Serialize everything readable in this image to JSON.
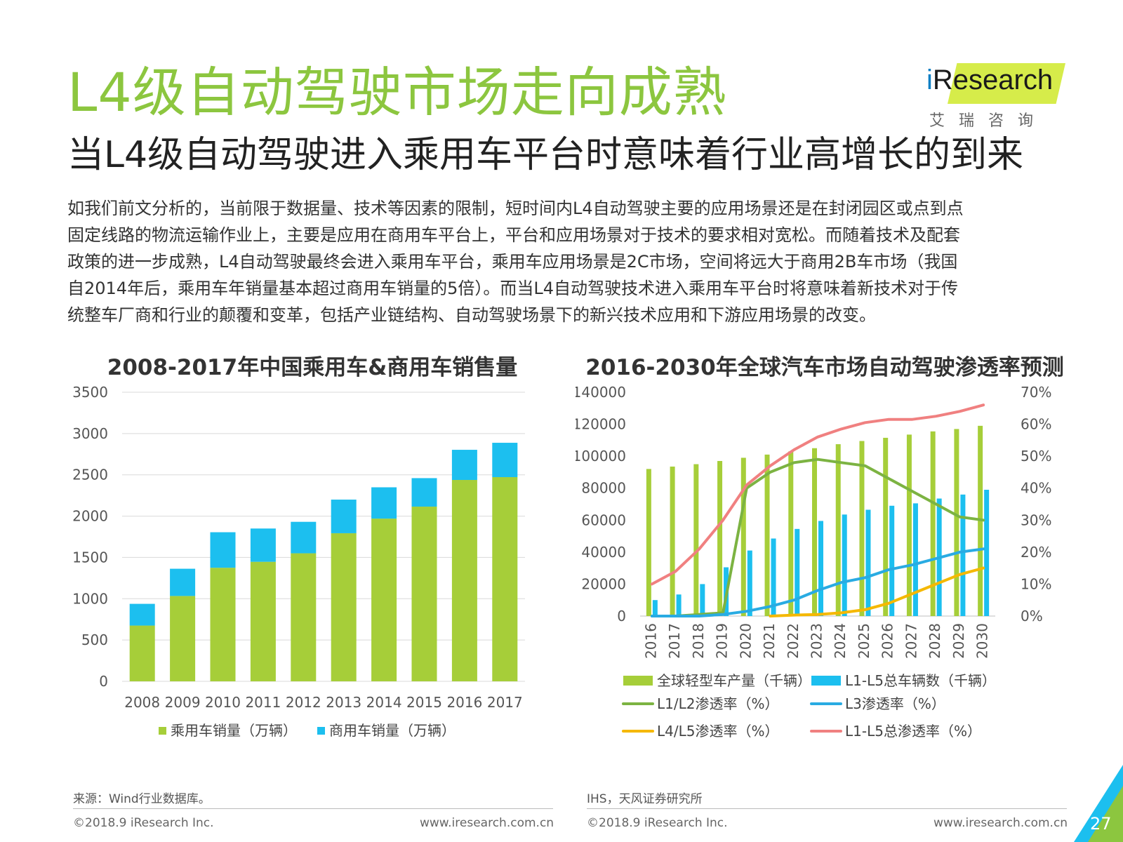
{
  "header": {
    "title": "L4级自动驾驶市场走向成熟",
    "subtitle": "当L4级自动驾驶进入乘用车平台时意味着行业高增长的到来"
  },
  "logo": {
    "brand_i": "i",
    "brand_rest": "Research",
    "chinese": "艾瑞咨询"
  },
  "body_lines": [
    "如我们前文分析的，当前限于数据量、技术等因素的限制，短时间内L4自动驾驶主要的应用场景还是在封闭园区或点到点",
    "固定线路的物流运输作业上，主要是应用在商用车平台上，平台和应用场景对于技术的要求相对宽松。而随着技术及配套",
    "政策的进一步成熟，L4自动驾驶最终会进入乘用车平台，乘用车应用场景是2C市场，空间将远大于商用2B车市场（我国",
    "自2014年后，乘用车年销量基本超过商用车销量的5倍）。而当L4自动驾驶技术进入乘用车平台时将意味着新技术对于传",
    "统整车厂商和行业的颠覆和变革，包括产业链结构、自动驾驶场景下的新兴技术应用和下游应用场景的改变。"
  ],
  "chart_data": [
    {
      "type": "bar",
      "stacked": true,
      "title": "2008-2017年中国乘用车&商用车销售量",
      "categories": [
        "2008",
        "2009",
        "2010",
        "2011",
        "2012",
        "2013",
        "2014",
        "2015",
        "2016",
        "2017"
      ],
      "series": [
        {
          "name": "乘用车销量（万辆）",
          "color": "#a6ce39",
          "values": [
            675,
            1033,
            1375,
            1447,
            1550,
            1793,
            1970,
            2115,
            2438,
            2472
          ]
        },
        {
          "name": "商用车销量（万辆）",
          "color": "#1cbfef",
          "values": [
            263,
            330,
            430,
            403,
            381,
            407,
            379,
            345,
            365,
            416
          ]
        }
      ],
      "yticks": [
        "0",
        "500",
        "1000",
        "1500",
        "2000",
        "2500",
        "3000",
        "3500"
      ],
      "ylim": [
        0,
        3500
      ],
      "grid": true,
      "legend": "bottom"
    },
    {
      "type": "bar+line",
      "title": "2016-2030年全球汽车市场自动驾驶渗透率预测",
      "categories": [
        "2016",
        "2017",
        "2018",
        "2019",
        "2020",
        "2021",
        "2022",
        "2023",
        "2024",
        "2025",
        "2026",
        "2027",
        "2028",
        "2029",
        "2030"
      ],
      "bar_series": [
        {
          "name": "全球轻型车产量（千辆）",
          "color": "#a6ce39",
          "values": [
            92000,
            93500,
            95000,
            97000,
            99000,
            101000,
            103000,
            105000,
            107500,
            109500,
            111500,
            113500,
            115500,
            117000,
            119000
          ]
        },
        {
          "name": "L1-L5总车辆数（千辆）",
          "color": "#1cbfef",
          "values": [
            10000,
            13500,
            20000,
            30500,
            41000,
            48500,
            54500,
            59500,
            63500,
            66500,
            69000,
            70500,
            73500,
            76000,
            79000
          ]
        }
      ],
      "line_series": [
        {
          "name": "L1/L2渗透率（%）",
          "color": "#7cb342",
          "values": [
            0,
            0,
            0.5,
            1,
            40,
            45,
            48,
            49,
            48,
            47,
            43,
            39,
            35,
            31,
            30
          ]
        },
        {
          "name": "L3渗透率（%）",
          "color": "#29abe2",
          "values": [
            0,
            0,
            0,
            0.5,
            1.5,
            3,
            5,
            8,
            10.5,
            12,
            14.5,
            16,
            18,
            20,
            21
          ]
        },
        {
          "name": "L4/L5渗透率（%）",
          "color": "#f5b800",
          "values": [
            null,
            null,
            null,
            null,
            null,
            0,
            0.3,
            0.5,
            1,
            2,
            4,
            7,
            10,
            13,
            15
          ]
        },
        {
          "name": "L1-L5总渗透率（%）",
          "color": "#f08080",
          "values": [
            10,
            14,
            21,
            30,
            41,
            47,
            52,
            56,
            58.5,
            60.5,
            61.5,
            61.5,
            62.5,
            64,
            66
          ]
        }
      ],
      "yticks_left": [
        "0",
        "20000",
        "40000",
        "60000",
        "80000",
        "100000",
        "120000",
        "140000"
      ],
      "ylim_left": [
        0,
        140000
      ],
      "yticks_right": [
        "0%",
        "10%",
        "20%",
        "30%",
        "40%",
        "50%",
        "60%",
        "70%"
      ],
      "ylim_right": [
        0,
        70
      ],
      "legend": "bottom"
    }
  ],
  "sources": {
    "left": "来源：Wind行业数据库。",
    "right": "IHS，天风证券研究所"
  },
  "footer": {
    "copyright": "©2018.9 iResearch Inc.",
    "site": "www.iresearch.com.cn",
    "page": "27"
  }
}
